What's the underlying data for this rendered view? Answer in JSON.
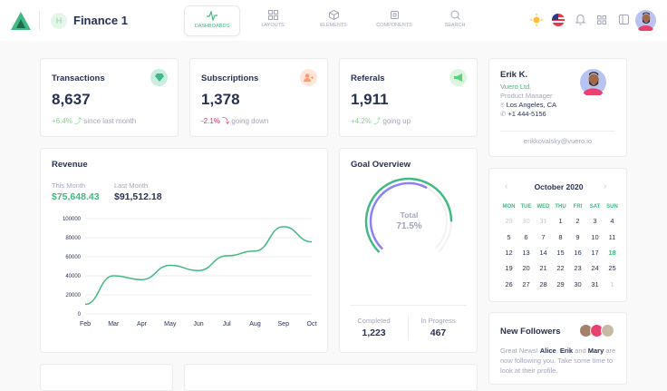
{
  "app": {
    "title": "Finance 1",
    "workspace_initial": "H"
  },
  "nav": [
    {
      "label": "Dashboards",
      "icon": "activity-icon",
      "active": true
    },
    {
      "label": "Layouts",
      "icon": "grid-icon"
    },
    {
      "label": "Elements",
      "icon": "box-icon"
    },
    {
      "label": "Components",
      "icon": "cpu-icon"
    },
    {
      "label": "Search",
      "icon": "search-icon"
    }
  ],
  "stats": [
    {
      "title": "Transactions",
      "value": "8,637",
      "change": "+6.4%",
      "note": "since last month",
      "direction": "up",
      "icon": "diamond-icon",
      "color": "#41b983"
    },
    {
      "title": "Subscriptions",
      "value": "1,378",
      "change": "-2.1%",
      "note": "going down",
      "direction": "down",
      "icon": "user-plus-icon",
      "color": "#ff7a45"
    },
    {
      "title": "Referals",
      "value": "1,911",
      "change": "+4.2%",
      "note": "going up",
      "direction": "up",
      "icon": "megaphone-icon",
      "color": "#5dd07b"
    }
  ],
  "profile": {
    "name": "Erik K.",
    "company": "Vuero Ltd.",
    "role": "Product Manager",
    "location": "Los Angeles, CA",
    "phone": "+1 444-5156",
    "email": "erikkovalsky@vuero.io"
  },
  "revenue": {
    "title": "Revenue",
    "this_month_label": "This Month",
    "this_month": "$75,648.43",
    "last_month_label": "Last Month",
    "last_month": "$91,512.18"
  },
  "chart_data": {
    "type": "line",
    "categories": [
      "Feb",
      "Mar",
      "Apr",
      "May",
      "Jun",
      "Jul",
      "Aug",
      "Sep",
      "Oct"
    ],
    "values": [
      10000,
      40000,
      36000,
      51000,
      45500,
      61000,
      66000,
      91500,
      75600
    ],
    "ylim": [
      0,
      100000
    ],
    "yticks": [
      "0",
      "20000",
      "40000",
      "60000",
      "80000",
      "100000"
    ],
    "grid": true,
    "color": "#41b983"
  },
  "goal": {
    "title": "Goal Overview",
    "center_label": "Total",
    "center_value": "71.5%",
    "series": [
      83,
      60
    ],
    "colors": [
      "#41b983",
      "#8b80f9"
    ],
    "completed_label": "Completed",
    "completed": "1,223",
    "progress_label": "In Progress",
    "progress": "467"
  },
  "calendar": {
    "month": "October 2020",
    "days": [
      "MON",
      "TUE",
      "WED",
      "THU",
      "FRI",
      "SAT",
      "SUN"
    ],
    "weeks": [
      [
        "29",
        "30",
        "31",
        "1",
        "2",
        "3",
        "4"
      ],
      [
        "5",
        "6",
        "7",
        "8",
        "9",
        "10",
        "11"
      ],
      [
        "12",
        "13",
        "14",
        "15",
        "16",
        "17",
        "18"
      ],
      [
        "19",
        "20",
        "21",
        "22",
        "23",
        "24",
        "25"
      ],
      [
        "26",
        "27",
        "28",
        "29",
        "30",
        "31",
        "1"
      ]
    ],
    "today": "18"
  },
  "followers": {
    "title": "New Followers",
    "text_a": "Great News! ",
    "n1": "Alice",
    "s1": ", ",
    "n2": "Erik",
    "s2": " and ",
    "n3": "Mary",
    "text_b": " are now following you. Take some time to look at their profile."
  }
}
